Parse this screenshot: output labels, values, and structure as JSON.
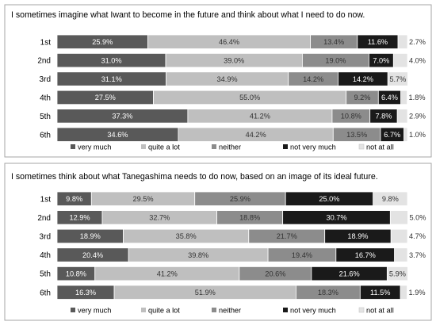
{
  "chart_data": [
    {
      "type": "bar",
      "orientation": "horizontal",
      "stacked": "100%",
      "title": "I sometimes imagine what Iwant to become in the future and think about what I need to do now.",
      "categories": [
        "1st",
        "2nd",
        "3rd",
        "4th",
        "5th",
        "6th"
      ],
      "series": [
        {
          "name": "very much",
          "values": [
            "25.9%",
            "31.0%",
            "31.1%",
            "27.5%",
            "37.3%",
            "34.6%"
          ]
        },
        {
          "name": "quite a lot",
          "values": [
            "46.4%",
            "39.0%",
            "34.9%",
            "55.0%",
            "41.2%",
            "44.2%"
          ]
        },
        {
          "name": "neither",
          "values": [
            "13.4%",
            "19.0%",
            "14.2%",
            "9.2%",
            "10.8%",
            "13.5%"
          ]
        },
        {
          "name": "not very much",
          "values": [
            "11.6%",
            "7.0%",
            "14.2%",
            "6.4%",
            "7.8%",
            "6.7%"
          ]
        },
        {
          "name": "not at all",
          "values": [
            "2.7%",
            "4.0%",
            "5.7%",
            "1.8%",
            "2.9%",
            "1.0%"
          ]
        }
      ],
      "legend_position": "bottom",
      "grid": false
    },
    {
      "type": "bar",
      "orientation": "horizontal",
      "stacked": "100%",
      "title": "I sometimes think about what Tanegashima needs to do now, based on an image of its ideal future.",
      "categories": [
        "1st",
        "2nd",
        "3rd",
        "4th",
        "5th",
        "6th"
      ],
      "series": [
        {
          "name": "very much",
          "values": [
            "9.8%",
            "12.9%",
            "18.9%",
            "20.4%",
            "10.8%",
            "16.3%"
          ]
        },
        {
          "name": "quite a lot",
          "values": [
            "29.5%",
            "32.7%",
            "35.8%",
            "39.8%",
            "41.2%",
            "51.9%"
          ]
        },
        {
          "name": "neither",
          "values": [
            "25.9%",
            "18.8%",
            "21.7%",
            "19.4%",
            "20.6%",
            "18.3%"
          ]
        },
        {
          "name": "not very much",
          "values": [
            "25.0%",
            "30.7%",
            "18.9%",
            "16.7%",
            "21.6%",
            "11.5%"
          ]
        },
        {
          "name": "not at all",
          "values": [
            "9.8%",
            "5.0%",
            "4.7%",
            "3.7%",
            "5.9%",
            "1.9%"
          ]
        }
      ],
      "legend_position": "bottom",
      "grid": false
    }
  ],
  "colors": {
    "very much": "#595959",
    "quite a lot": "#bfbfbf",
    "neither": "#8c8c8c",
    "not very much": "#1a1a1a",
    "not at all": "#e3e3e3",
    "label_on_dark": "#ffffff",
    "label_on_light": "#333333",
    "border": "#a6a6a6"
  }
}
